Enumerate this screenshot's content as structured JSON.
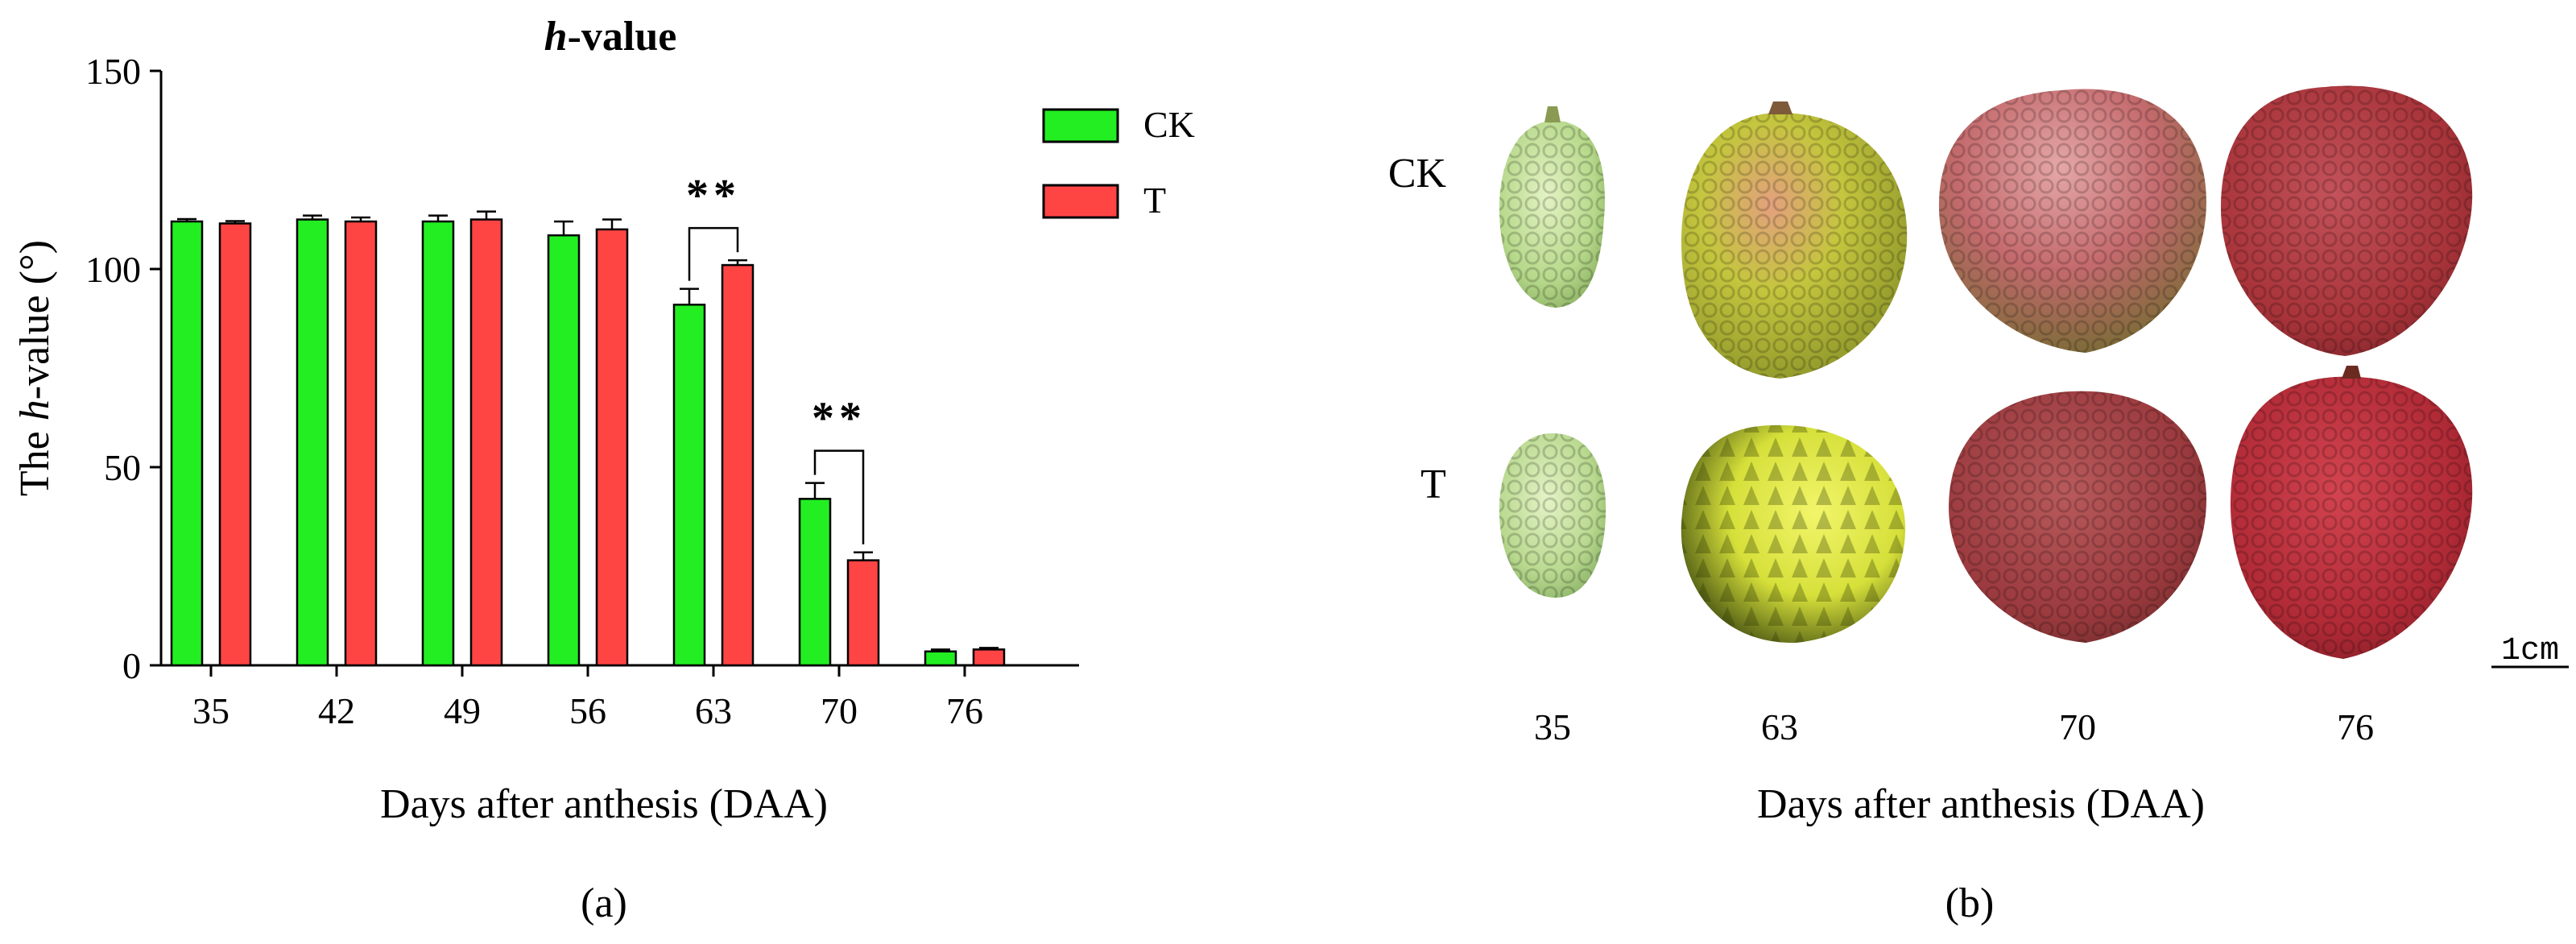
{
  "chart_data": {
    "type": "bar",
    "title": "h-value",
    "title_parts": {
      "italic": "h",
      "rest": "-value"
    },
    "xlabel": "Days after anthesis (DAA)",
    "ylabel": "The h-value (°)",
    "ylabel_parts": {
      "pre": "The ",
      "italic": "h",
      "post": "-value (°)"
    },
    "ylim": [
      0,
      150
    ],
    "yticks": [
      0,
      50,
      100,
      150
    ],
    "categories": [
      "35",
      "42",
      "49",
      "56",
      "63",
      "70",
      "76"
    ],
    "series": [
      {
        "name": "CK",
        "color": "#22ee22",
        "values": [
          112,
          112.5,
          112,
          108.5,
          91,
          42,
          3.5
        ],
        "errors": [
          0.6,
          1.0,
          1.5,
          3.5,
          4.0,
          4.0,
          0.5
        ]
      },
      {
        "name": "T",
        "color": "#ff4444",
        "values": [
          111.5,
          112,
          112.5,
          110,
          101,
          26.5,
          4
        ],
        "errors": [
          0.6,
          1.0,
          2.0,
          2.5,
          1.2,
          2.0,
          0.4
        ]
      }
    ],
    "significance": [
      {
        "category": "63",
        "label": "**"
      },
      {
        "category": "70",
        "label": "**"
      }
    ],
    "legend_position": "top-right",
    "panel_label": "(a)"
  },
  "photo_panel": {
    "row_labels": [
      "CK",
      "T"
    ],
    "column_labels": [
      "35",
      "63",
      "70",
      "76"
    ],
    "xlabel": "Days after anthesis (DAA)",
    "scale_bar": "1cm",
    "panel_label": "(b)",
    "colors": {
      "ck35": "#b7d98b",
      "ck63": "#c5c63e",
      "ck70": "#c46a6d",
      "ck76": "#a8343a",
      "t35": "#b9d98f",
      "t63": "#d6e03a",
      "t70": "#9c3b3f",
      "t76": "#b02a36"
    }
  }
}
